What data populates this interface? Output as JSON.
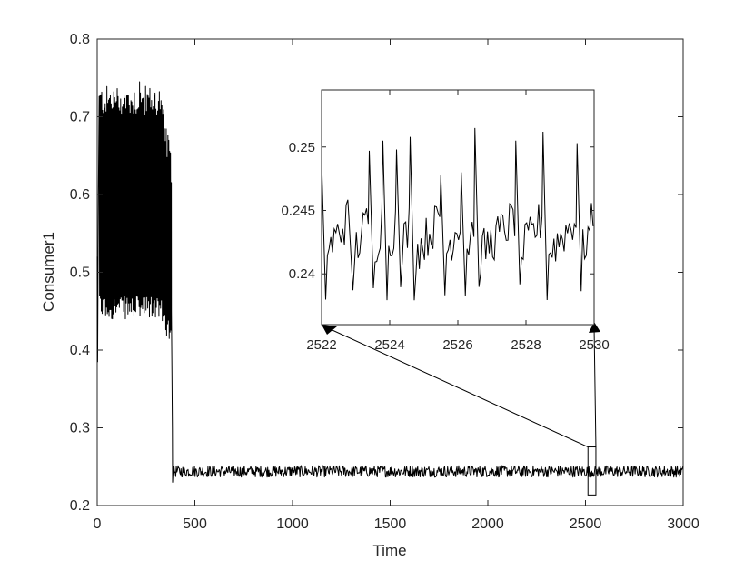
{
  "chart_data": [
    {
      "id": "main",
      "type": "line",
      "xlabel": "Time",
      "ylabel": "Consumer1",
      "xlim": [
        0,
        3000
      ],
      "ylim": [
        0.2,
        0.8
      ],
      "xticks": [
        0,
        500,
        1000,
        1500,
        2000,
        2500,
        3000
      ],
      "xtick_labels": [
        "0",
        "500",
        "1000",
        "1500",
        "2000",
        "2500",
        "3000"
      ],
      "yticks": [
        0.2,
        0.3,
        0.4,
        0.5,
        0.6,
        0.7,
        0.8
      ],
      "ytick_labels": [
        "0.2",
        "0.3",
        "0.4",
        "0.5",
        "0.6",
        "0.7",
        "0.8"
      ],
      "grid": false,
      "series_color": "#000000",
      "description_of_trace": {
        "oscillation_phase": {
          "x_range": [
            0,
            380
          ],
          "lower_envelope": 0.45,
          "upper_envelope": 0.72,
          "peak_max": 0.745
        },
        "transient_dip": {
          "x": 385,
          "y": 0.23
        },
        "steady_phase": {
          "x_range": [
            390,
            3000
          ],
          "mean": 0.244,
          "band": [
            0.237,
            0.252
          ]
        }
      },
      "zoom_box": {
        "x": [
          2522,
          2530
        ],
        "y": [
          0.237,
          0.252
        ]
      }
    },
    {
      "id": "inset",
      "type": "line",
      "xlim": [
        2522,
        2530
      ],
      "ylim": [
        0.236,
        0.2545
      ],
      "xticks": [
        2522,
        2524,
        2526,
        2528,
        2530
      ],
      "xtick_labels": [
        "2522",
        "2524",
        "2526",
        "2528",
        "2530"
      ],
      "yticks": [
        0.24,
        0.245,
        0.25
      ],
      "ytick_labels": [
        "0.24",
        "0.245",
        "0.25"
      ],
      "series_color": "#000000",
      "peaks": [
        {
          "x": 2522.0,
          "y": 0.249
        },
        {
          "x": 2522.8,
          "y": 0.2445
        },
        {
          "x": 2523.4,
          "y": 0.2497
        },
        {
          "x": 2523.8,
          "y": 0.2505
        },
        {
          "x": 2524.2,
          "y": 0.2498
        },
        {
          "x": 2524.6,
          "y": 0.2508
        },
        {
          "x": 2525.5,
          "y": 0.2478
        },
        {
          "x": 2526.1,
          "y": 0.248
        },
        {
          "x": 2526.5,
          "y": 0.2515
        },
        {
          "x": 2527.7,
          "y": 0.2505
        },
        {
          "x": 2528.5,
          "y": 0.2512
        },
        {
          "x": 2529.5,
          "y": 0.2503
        }
      ],
      "troughs_min": 0.2377,
      "baseline": 0.2415
    }
  ]
}
